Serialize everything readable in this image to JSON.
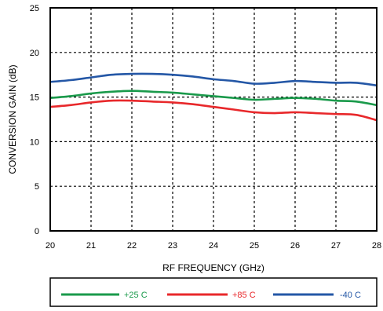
{
  "chart_data": {
    "type": "line",
    "xlabel": "RF FREQUENCY (GHz)",
    "ylabel": "CONVERSION GAIN (dB)",
    "xlim": [
      20,
      28
    ],
    "ylim": [
      0,
      25
    ],
    "xticks": [
      "20",
      "21",
      "22",
      "23",
      "24",
      "25",
      "26",
      "27",
      "28"
    ],
    "yticks": [
      "0",
      "5",
      "10",
      "15",
      "20",
      "25"
    ],
    "grid": true,
    "legend_position": "bottom",
    "series": [
      {
        "name": "+25 C",
        "color": "#1a9a4b",
        "x": [
          20,
          20.5,
          21,
          21.5,
          22,
          22.5,
          23,
          23.5,
          24,
          24.5,
          25,
          25.5,
          26,
          26.5,
          27,
          27.5,
          28
        ],
        "values": [
          14.9,
          15.1,
          15.4,
          15.6,
          15.7,
          15.6,
          15.5,
          15.3,
          15.1,
          14.9,
          14.7,
          14.8,
          14.9,
          14.8,
          14.6,
          14.5,
          14.1
        ]
      },
      {
        "name": "+85 C",
        "color": "#e8282b",
        "x": [
          20,
          20.5,
          21,
          21.5,
          22,
          22.5,
          23,
          23.5,
          24,
          24.5,
          25,
          25.5,
          26,
          26.5,
          27,
          27.5,
          28
        ],
        "values": [
          13.9,
          14.1,
          14.4,
          14.6,
          14.6,
          14.5,
          14.4,
          14.2,
          13.9,
          13.6,
          13.3,
          13.2,
          13.3,
          13.2,
          13.1,
          13.0,
          12.4
        ]
      },
      {
        "name": "-40 C",
        "color": "#2457a6",
        "x": [
          20,
          20.5,
          21,
          21.5,
          22,
          22.5,
          23,
          23.5,
          24,
          24.5,
          25,
          25.5,
          26,
          26.5,
          27,
          27.5,
          28
        ],
        "values": [
          16.7,
          16.9,
          17.2,
          17.5,
          17.6,
          17.6,
          17.5,
          17.3,
          17.0,
          16.8,
          16.5,
          16.6,
          16.8,
          16.7,
          16.6,
          16.6,
          16.3
        ]
      }
    ]
  }
}
